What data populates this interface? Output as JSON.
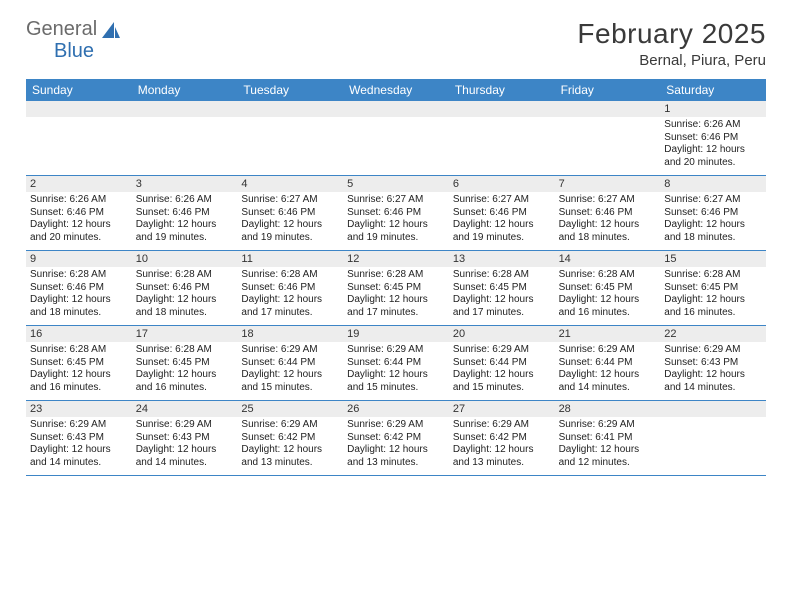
{
  "logo": {
    "text1": "General",
    "text2": "Blue"
  },
  "title": "February 2025",
  "location": "Bernal, Piura, Peru",
  "colors": {
    "header_bar": "#3d85c6",
    "daynum_bg": "#ededed",
    "text": "#333333",
    "logo_gray": "#6b6b6b",
    "logo_blue": "#2f6fb0"
  },
  "days_of_week": [
    "Sunday",
    "Monday",
    "Tuesday",
    "Wednesday",
    "Thursday",
    "Friday",
    "Saturday"
  ],
  "weeks": [
    {
      "days": [
        {
          "num": "",
          "sunrise": "",
          "sunset": "",
          "daylight": ""
        },
        {
          "num": "",
          "sunrise": "",
          "sunset": "",
          "daylight": ""
        },
        {
          "num": "",
          "sunrise": "",
          "sunset": "",
          "daylight": ""
        },
        {
          "num": "",
          "sunrise": "",
          "sunset": "",
          "daylight": ""
        },
        {
          "num": "",
          "sunrise": "",
          "sunset": "",
          "daylight": ""
        },
        {
          "num": "",
          "sunrise": "",
          "sunset": "",
          "daylight": ""
        },
        {
          "num": "1",
          "sunrise": "Sunrise: 6:26 AM",
          "sunset": "Sunset: 6:46 PM",
          "daylight": "Daylight: 12 hours and 20 minutes."
        }
      ]
    },
    {
      "days": [
        {
          "num": "2",
          "sunrise": "Sunrise: 6:26 AM",
          "sunset": "Sunset: 6:46 PM",
          "daylight": "Daylight: 12 hours and 20 minutes."
        },
        {
          "num": "3",
          "sunrise": "Sunrise: 6:26 AM",
          "sunset": "Sunset: 6:46 PM",
          "daylight": "Daylight: 12 hours and 19 minutes."
        },
        {
          "num": "4",
          "sunrise": "Sunrise: 6:27 AM",
          "sunset": "Sunset: 6:46 PM",
          "daylight": "Daylight: 12 hours and 19 minutes."
        },
        {
          "num": "5",
          "sunrise": "Sunrise: 6:27 AM",
          "sunset": "Sunset: 6:46 PM",
          "daylight": "Daylight: 12 hours and 19 minutes."
        },
        {
          "num": "6",
          "sunrise": "Sunrise: 6:27 AM",
          "sunset": "Sunset: 6:46 PM",
          "daylight": "Daylight: 12 hours and 19 minutes."
        },
        {
          "num": "7",
          "sunrise": "Sunrise: 6:27 AM",
          "sunset": "Sunset: 6:46 PM",
          "daylight": "Daylight: 12 hours and 18 minutes."
        },
        {
          "num": "8",
          "sunrise": "Sunrise: 6:27 AM",
          "sunset": "Sunset: 6:46 PM",
          "daylight": "Daylight: 12 hours and 18 minutes."
        }
      ]
    },
    {
      "days": [
        {
          "num": "9",
          "sunrise": "Sunrise: 6:28 AM",
          "sunset": "Sunset: 6:46 PM",
          "daylight": "Daylight: 12 hours and 18 minutes."
        },
        {
          "num": "10",
          "sunrise": "Sunrise: 6:28 AM",
          "sunset": "Sunset: 6:46 PM",
          "daylight": "Daylight: 12 hours and 18 minutes."
        },
        {
          "num": "11",
          "sunrise": "Sunrise: 6:28 AM",
          "sunset": "Sunset: 6:46 PM",
          "daylight": "Daylight: 12 hours and 17 minutes."
        },
        {
          "num": "12",
          "sunrise": "Sunrise: 6:28 AM",
          "sunset": "Sunset: 6:45 PM",
          "daylight": "Daylight: 12 hours and 17 minutes."
        },
        {
          "num": "13",
          "sunrise": "Sunrise: 6:28 AM",
          "sunset": "Sunset: 6:45 PM",
          "daylight": "Daylight: 12 hours and 17 minutes."
        },
        {
          "num": "14",
          "sunrise": "Sunrise: 6:28 AM",
          "sunset": "Sunset: 6:45 PM",
          "daylight": "Daylight: 12 hours and 16 minutes."
        },
        {
          "num": "15",
          "sunrise": "Sunrise: 6:28 AM",
          "sunset": "Sunset: 6:45 PM",
          "daylight": "Daylight: 12 hours and 16 minutes."
        }
      ]
    },
    {
      "days": [
        {
          "num": "16",
          "sunrise": "Sunrise: 6:28 AM",
          "sunset": "Sunset: 6:45 PM",
          "daylight": "Daylight: 12 hours and 16 minutes."
        },
        {
          "num": "17",
          "sunrise": "Sunrise: 6:28 AM",
          "sunset": "Sunset: 6:45 PM",
          "daylight": "Daylight: 12 hours and 16 minutes."
        },
        {
          "num": "18",
          "sunrise": "Sunrise: 6:29 AM",
          "sunset": "Sunset: 6:44 PM",
          "daylight": "Daylight: 12 hours and 15 minutes."
        },
        {
          "num": "19",
          "sunrise": "Sunrise: 6:29 AM",
          "sunset": "Sunset: 6:44 PM",
          "daylight": "Daylight: 12 hours and 15 minutes."
        },
        {
          "num": "20",
          "sunrise": "Sunrise: 6:29 AM",
          "sunset": "Sunset: 6:44 PM",
          "daylight": "Daylight: 12 hours and 15 minutes."
        },
        {
          "num": "21",
          "sunrise": "Sunrise: 6:29 AM",
          "sunset": "Sunset: 6:44 PM",
          "daylight": "Daylight: 12 hours and 14 minutes."
        },
        {
          "num": "22",
          "sunrise": "Sunrise: 6:29 AM",
          "sunset": "Sunset: 6:43 PM",
          "daylight": "Daylight: 12 hours and 14 minutes."
        }
      ]
    },
    {
      "days": [
        {
          "num": "23",
          "sunrise": "Sunrise: 6:29 AM",
          "sunset": "Sunset: 6:43 PM",
          "daylight": "Daylight: 12 hours and 14 minutes."
        },
        {
          "num": "24",
          "sunrise": "Sunrise: 6:29 AM",
          "sunset": "Sunset: 6:43 PM",
          "daylight": "Daylight: 12 hours and 14 minutes."
        },
        {
          "num": "25",
          "sunrise": "Sunrise: 6:29 AM",
          "sunset": "Sunset: 6:42 PM",
          "daylight": "Daylight: 12 hours and 13 minutes."
        },
        {
          "num": "26",
          "sunrise": "Sunrise: 6:29 AM",
          "sunset": "Sunset: 6:42 PM",
          "daylight": "Daylight: 12 hours and 13 minutes."
        },
        {
          "num": "27",
          "sunrise": "Sunrise: 6:29 AM",
          "sunset": "Sunset: 6:42 PM",
          "daylight": "Daylight: 12 hours and 13 minutes."
        },
        {
          "num": "28",
          "sunrise": "Sunrise: 6:29 AM",
          "sunset": "Sunset: 6:41 PM",
          "daylight": "Daylight: 12 hours and 12 minutes."
        },
        {
          "num": "",
          "sunrise": "",
          "sunset": "",
          "daylight": ""
        }
      ]
    }
  ]
}
